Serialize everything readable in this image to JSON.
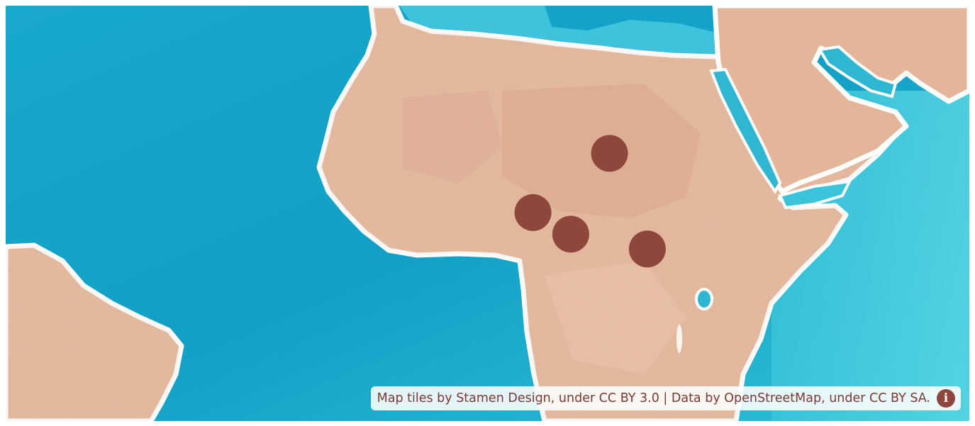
{
  "map": {
    "tile_style": "watercolor",
    "colors": {
      "ocean_deep": "#14a7c9",
      "ocean_light": "#5fd6e0",
      "land": "#e5b99e",
      "land_shade": "#c98f78",
      "coast_halo": "#ffffff",
      "marker": "#8f463d"
    },
    "markers": [
      {
        "name": "marker-1",
        "lat": 14.5,
        "lon": 19.0
      },
      {
        "name": "marker-2",
        "lat": 8.5,
        "lon": 11.5
      },
      {
        "name": "marker-3",
        "lat": 6.3,
        "lon": 15.2
      },
      {
        "name": "marker-4",
        "lat": 4.8,
        "lon": 22.7
      }
    ]
  },
  "attribution": {
    "text": "Map tiles by Stamen Design, under CC BY 3.0 | Data by OpenStreetMap, under CC BY SA.",
    "info_icon": "info-icon",
    "info_glyph": "i"
  }
}
